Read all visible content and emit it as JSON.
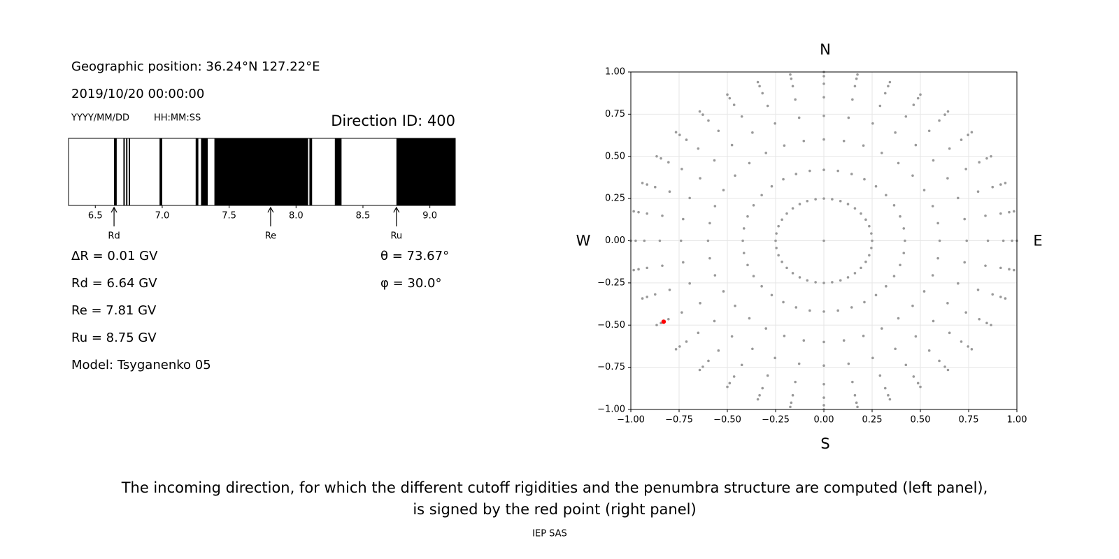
{
  "header": {
    "position": "Geographic position: 36.24°N 127.22°E",
    "datetime": "2019/10/20 00:00:00",
    "date_format": "YYYY/MM/DD",
    "time_format": "HH:MM:SS",
    "direction": "Direction ID: 400"
  },
  "results": {
    "delta_r": "ΔR = 0.01 GV",
    "rd": "Rd = 6.64 GV",
    "re": "Re = 7.81 GV",
    "ru": "Ru = 8.75 GV",
    "model": "Model: Tsyganenko 05",
    "theta": "θ = 73.67°",
    "phi": "φ = 30.0°"
  },
  "chart_data": [
    {
      "type": "penumbra",
      "xlim": [
        6.3,
        9.19
      ],
      "xticks": [
        6.5,
        {
          "value": 7,
          "label": "7.0"
        },
        7.5,
        {
          "value": 8,
          "label": "8.0"
        },
        8.5,
        {
          "value": 9,
          "label": "9.0"
        }
      ],
      "color": "#000000",
      "bands": [
        [
          6.64,
          6.66
        ],
        [
          6.71,
          6.72
        ],
        [
          6.73,
          6.74
        ],
        [
          6.75,
          6.76
        ],
        [
          6.98,
          7.0
        ],
        [
          7.25,
          7.27
        ],
        [
          7.29,
          7.34
        ],
        [
          7.39,
          8.09
        ],
        [
          8.1,
          8.12
        ],
        [
          8.29,
          8.34
        ],
        [
          8.75,
          9.19
        ]
      ],
      "markers": [
        {
          "label": "Rd",
          "value": 6.64
        },
        {
          "label": "Re",
          "value": 7.81
        },
        {
          "label": "Ru",
          "value": 8.75
        }
      ]
    },
    {
      "type": "scatter",
      "xlim": [
        -1,
        1
      ],
      "ylim": [
        -1,
        1
      ],
      "grid": true,
      "color": "#999999",
      "xticks": [
        {
          "value": -1,
          "label": "−1.00"
        },
        {
          "value": -0.75,
          "label": "−0.75"
        },
        {
          "value": -0.5,
          "label": "−0.50"
        },
        {
          "value": -0.25,
          "label": "−0.25"
        },
        {
          "value": 0,
          "label": "0.00"
        },
        {
          "value": 0.25,
          "label": "0.25"
        },
        {
          "value": 0.5,
          "label": "0.50"
        },
        {
          "value": 0.75,
          "label": "0.75"
        },
        {
          "value": 1,
          "label": "1.00"
        }
      ],
      "yticks": [
        {
          "value": -1,
          "label": "−1.00"
        },
        {
          "value": -0.75,
          "label": "−0.75"
        },
        {
          "value": -0.5,
          "label": "−0.50"
        },
        {
          "value": -0.25,
          "label": "−0.25"
        },
        {
          "value": 0,
          "label": "0.00"
        },
        {
          "value": 0.25,
          "label": "0.25"
        },
        {
          "value": 0.5,
          "label": "0.50"
        },
        {
          "value": 0.75,
          "label": "0.75"
        },
        {
          "value": 1,
          "label": "1.00"
        }
      ],
      "compass": {
        "north": "N",
        "south": "S",
        "west": "W",
        "east": "E"
      },
      "highlight": {
        "x": -0.83,
        "y": -0.48,
        "color": "#ff0000"
      },
      "x": [
        0,
        0,
        0.043,
        0.086,
        0.125,
        0.161,
        0.192,
        0.217,
        0.235,
        0.246,
        0.25,
        0.246,
        0.235,
        0.217,
        0.192,
        0.161,
        0.125,
        0.086,
        0.043,
        0,
        -0.043,
        -0.086,
        -0.125,
        -0.161,
        -0.192,
        -0.217,
        -0.235,
        -0.246,
        -0.25,
        -0.246,
        -0.235,
        -0.217,
        -0.192,
        -0.161,
        -0.125,
        -0.086,
        -0.043,
        0,
        0.073,
        0.144,
        0.21,
        0.27,
        0.322,
        0.364,
        0.395,
        0.414,
        0.42,
        0.414,
        0.395,
        0.364,
        0.322,
        0.27,
        0.21,
        0.144,
        0.073,
        0,
        -0.073,
        -0.144,
        -0.21,
        -0.27,
        -0.322,
        -0.364,
        -0.395,
        -0.414,
        -0.42,
        -0.414,
        -0.395,
        -0.364,
        -0.322,
        -0.27,
        -0.21,
        -0.144,
        -0.073,
        0,
        0.104,
        0.205,
        0.3,
        0.386,
        0.46,
        0.52,
        0.564,
        0.591,
        0.6,
        0.591,
        0.564,
        0.52,
        0.46,
        0.386,
        0.3,
        0.205,
        0.104,
        0,
        -0.104,
        -0.205,
        -0.3,
        -0.386,
        -0.46,
        -0.52,
        -0.564,
        -0.591,
        -0.6,
        -0.591,
        -0.564,
        -0.52,
        -0.46,
        -0.386,
        -0.3,
        -0.205,
        -0.104,
        0,
        0.128,
        0.253,
        0.37,
        0.476,
        0.567,
        0.641,
        0.695,
        0.729,
        0.74,
        0.729,
        0.695,
        0.641,
        0.567,
        0.476,
        0.37,
        0.253,
        0.128,
        0,
        -0.128,
        -0.253,
        -0.37,
        -0.476,
        -0.567,
        -0.641,
        -0.695,
        -0.729,
        -0.74,
        -0.729,
        -0.695,
        -0.641,
        -0.567,
        -0.476,
        -0.37,
        -0.253,
        -0.128,
        0,
        0.148,
        0.291,
        0.425,
        0.546,
        0.651,
        0.736,
        0.799,
        0.837,
        0.85,
        0.837,
        0.799,
        0.736,
        0.651,
        0.546,
        0.425,
        0.291,
        0.148,
        0,
        -0.148,
        -0.291,
        -0.425,
        -0.546,
        -0.651,
        -0.736,
        -0.799,
        -0.837,
        -0.85,
        -0.837,
        -0.799,
        -0.736,
        -0.651,
        -0.546,
        -0.425,
        -0.291,
        -0.148,
        0,
        0.161,
        0.318,
        0.465,
        0.598,
        0.712,
        0.805,
        0.874,
        0.916,
        0.93,
        0.916,
        0.874,
        0.805,
        0.712,
        0.598,
        0.465,
        0.318,
        0.161,
        0,
        -0.161,
        -0.318,
        -0.465,
        -0.598,
        -0.712,
        -0.805,
        -0.874,
        -0.916,
        -0.93,
        -0.916,
        -0.874,
        -0.805,
        -0.712,
        -0.598,
        -0.465,
        -0.318,
        -0.161,
        0,
        0.169,
        0.333,
        0.488,
        0.627,
        0.747,
        0.844,
        0.916,
        0.96,
        0.975,
        0.96,
        0.916,
        0.844,
        0.747,
        0.627,
        0.488,
        0.333,
        0.169,
        0,
        -0.169,
        -0.333,
        -0.488,
        -0.627,
        -0.747,
        -0.844,
        -0.916,
        -0.96,
        -0.975,
        -0.96,
        -0.916,
        -0.844,
        -0.747,
        -0.627,
        -0.488,
        -0.333,
        -0.169,
        0,
        0.174,
        0.342,
        0.5,
        0.643,
        0.766,
        0.866,
        0.94,
        0.985,
        1,
        0.985,
        0.94,
        0.866,
        0.766,
        0.643,
        0.5,
        0.342,
        0.174,
        0,
        -0.174,
        -0.342,
        -0.5,
        -0.643,
        -0.766,
        -0.866,
        -0.94,
        -0.985,
        -1,
        -0.985,
        -0.94,
        -0.866,
        -0.766,
        -0.643,
        -0.5,
        -0.342,
        -0.174
      ],
      "y": [
        0,
        0.25,
        0.246,
        0.235,
        0.217,
        0.192,
        0.161,
        0.125,
        0.086,
        0.043,
        0,
        -0.043,
        -0.086,
        -0.125,
        -0.161,
        -0.192,
        -0.217,
        -0.235,
        -0.246,
        -0.25,
        -0.246,
        -0.235,
        -0.217,
        -0.192,
        -0.161,
        -0.125,
        -0.086,
        -0.043,
        0,
        0.043,
        0.086,
        0.125,
        0.161,
        0.192,
        0.217,
        0.235,
        0.246,
        0.42,
        0.414,
        0.395,
        0.364,
        0.322,
        0.27,
        0.21,
        0.144,
        0.073,
        0,
        -0.073,
        -0.144,
        -0.21,
        -0.27,
        -0.322,
        -0.364,
        -0.395,
        -0.414,
        -0.42,
        -0.414,
        -0.395,
        -0.364,
        -0.322,
        -0.27,
        -0.21,
        -0.144,
        -0.073,
        0,
        0.073,
        0.144,
        0.21,
        0.27,
        0.322,
        0.364,
        0.395,
        0.414,
        0.6,
        0.591,
        0.564,
        0.52,
        0.46,
        0.386,
        0.3,
        0.205,
        0.104,
        0,
        -0.104,
        -0.205,
        -0.3,
        -0.386,
        -0.46,
        -0.52,
        -0.564,
        -0.591,
        -0.6,
        -0.591,
        -0.564,
        -0.52,
        -0.46,
        -0.386,
        -0.3,
        -0.205,
        -0.104,
        0,
        0.104,
        0.205,
        0.3,
        0.386,
        0.46,
        0.52,
        0.564,
        0.591,
        0.74,
        0.729,
        0.695,
        0.641,
        0.567,
        0.476,
        0.37,
        0.253,
        0.128,
        0,
        -0.128,
        -0.253,
        -0.37,
        -0.476,
        -0.567,
        -0.641,
        -0.695,
        -0.729,
        -0.74,
        -0.729,
        -0.695,
        -0.641,
        -0.567,
        -0.476,
        -0.37,
        -0.253,
        -0.128,
        0,
        0.128,
        0.253,
        0.37,
        0.476,
        0.567,
        0.641,
        0.695,
        0.729,
        0.85,
        0.837,
        0.799,
        0.736,
        0.651,
        0.546,
        0.425,
        0.291,
        0.148,
        0,
        -0.148,
        -0.291,
        -0.425,
        -0.546,
        -0.651,
        -0.736,
        -0.799,
        -0.837,
        -0.85,
        -0.837,
        -0.799,
        -0.736,
        -0.651,
        -0.546,
        -0.425,
        -0.291,
        -0.148,
        0,
        0.148,
        0.291,
        0.425,
        0.546,
        0.651,
        0.736,
        0.799,
        0.837,
        0.93,
        0.916,
        0.874,
        0.805,
        0.712,
        0.598,
        0.465,
        0.318,
        0.161,
        0,
        -0.161,
        -0.318,
        -0.465,
        -0.598,
        -0.712,
        -0.805,
        -0.874,
        -0.916,
        -0.93,
        -0.916,
        -0.874,
        -0.805,
        -0.712,
        -0.598,
        -0.465,
        -0.318,
        -0.161,
        0,
        0.161,
        0.318,
        0.465,
        0.598,
        0.712,
        0.805,
        0.874,
        0.916,
        0.975,
        0.96,
        0.916,
        0.844,
        0.747,
        0.627,
        0.488,
        0.333,
        0.169,
        0,
        -0.169,
        -0.333,
        -0.488,
        -0.627,
        -0.747,
        -0.844,
        -0.916,
        -0.96,
        -0.975,
        -0.96,
        -0.916,
        -0.844,
        -0.747,
        -0.627,
        -0.488,
        -0.333,
        -0.169,
        0,
        0.169,
        0.333,
        0.488,
        0.627,
        0.747,
        0.844,
        0.916,
        0.96,
        1,
        0.985,
        0.94,
        0.866,
        0.766,
        0.643,
        0.5,
        0.342,
        0.174,
        0,
        -0.174,
        -0.342,
        -0.5,
        -0.643,
        -0.766,
        -0.866,
        -0.94,
        -0.985,
        -1,
        -0.985,
        -0.94,
        -0.866,
        -0.766,
        -0.643,
        -0.5,
        -0.342,
        -0.174,
        0,
        0.174,
        0.342,
        0.5,
        0.643,
        0.766,
        0.866,
        0.94,
        0.985
      ]
    }
  ],
  "caption": [
    "The incoming direction, for which the different cutoff rigidities and the penumbra structure are computed (left panel),",
    "is signed by the red point (right panel)"
  ],
  "footer": "IEP SAS"
}
